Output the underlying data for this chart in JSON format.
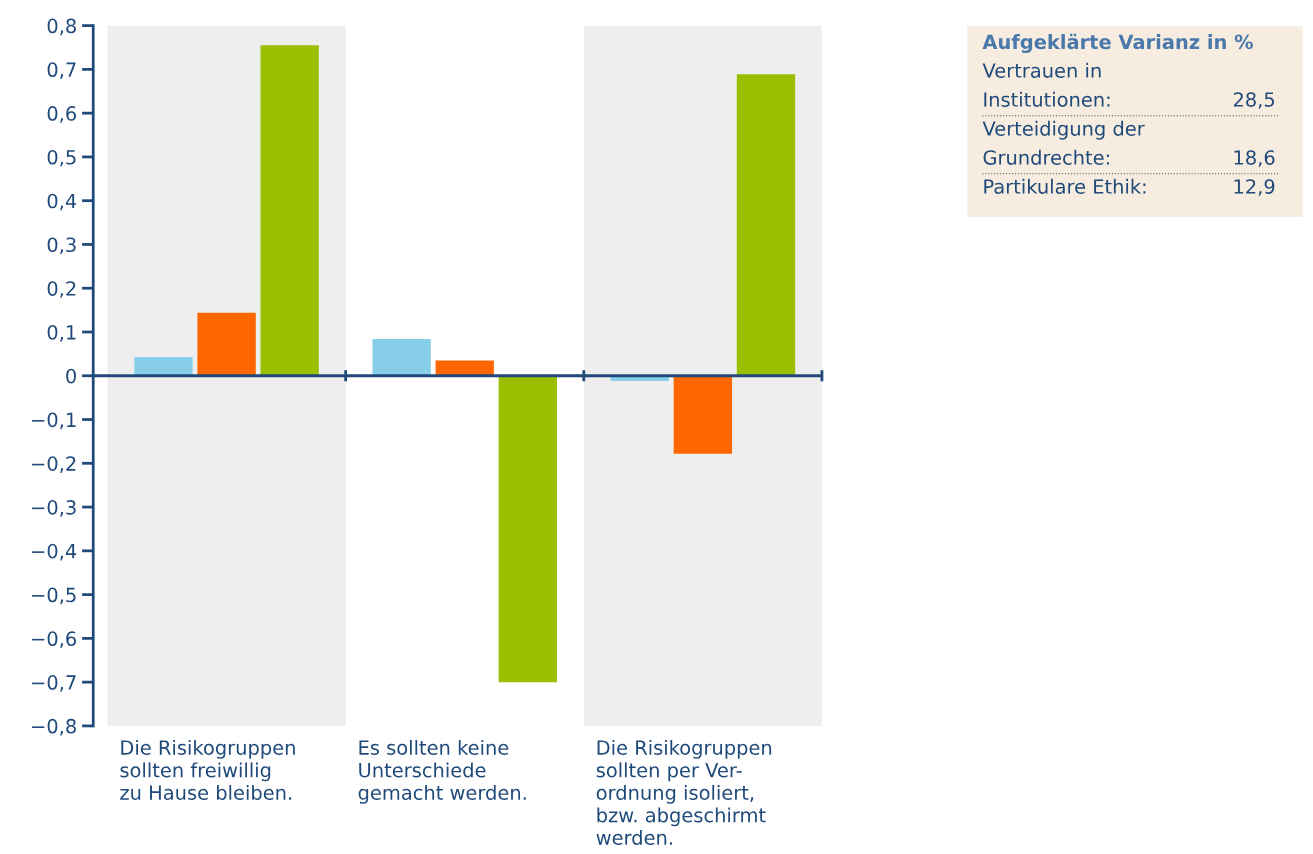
{
  "chart_data": {
    "type": "bar",
    "categories": [
      "Die Risikogruppen\nsollten freiwillig\nzu Hause bleiben.",
      "Es sollten keine\nUnterschiede\ngemacht werden.",
      "Die Risikogruppen\nsollten per Ver-\nordnung isoliert,\nbzw. abgeschirmt\nwerden."
    ],
    "series": [
      {
        "color": "#87ceea",
        "values": [
          0.043,
          0.084,
          -0.012
        ]
      },
      {
        "color": "#ff6600",
        "values": [
          0.144,
          0.035,
          -0.178
        ]
      },
      {
        "color": "#99bf00",
        "values": [
          0.755,
          -0.7,
          0.689
        ]
      }
    ],
    "ylim": [
      -0.8,
      0.8
    ],
    "yticks": [
      {
        "value": -0.8,
        "label": "−0,8"
      },
      {
        "value": -0.7,
        "label": "−0,7"
      },
      {
        "value": -0.6,
        "label": "−0,6"
      },
      {
        "value": -0.5,
        "label": "−0,5"
      },
      {
        "value": -0.4,
        "label": "−0,4"
      },
      {
        "value": -0.3,
        "label": "−0,3"
      },
      {
        "value": -0.2,
        "label": "−0,2"
      },
      {
        "value": -0.1,
        "label": "−0,1"
      },
      {
        "value": 0,
        "label": "0"
      },
      {
        "value": 0.1,
        "label": "0,1"
      },
      {
        "value": 0.2,
        "label": "0,2"
      },
      {
        "value": 0.3,
        "label": "0,3"
      },
      {
        "value": 0.4,
        "label": "0,4"
      },
      {
        "value": 0.5,
        "label": "0,5"
      },
      {
        "value": 0.6,
        "label": "0,6"
      },
      {
        "value": 0.7,
        "label": "0,7"
      },
      {
        "value": 0.8,
        "label": "0,8"
      }
    ],
    "grid": false,
    "legend": false,
    "ref_lines": [
      {
        "axis": "y",
        "value": 0,
        "color": "#1f4a7a"
      }
    ],
    "annotations": [
      "Aufgeklärte Varianz in %",
      "Vertrauen in\nInstitutionen: 28,5",
      "Verteidigung der\nGrundrechte: 18,6",
      "Partikulare Ethik: 12,9"
    ]
  }
}
